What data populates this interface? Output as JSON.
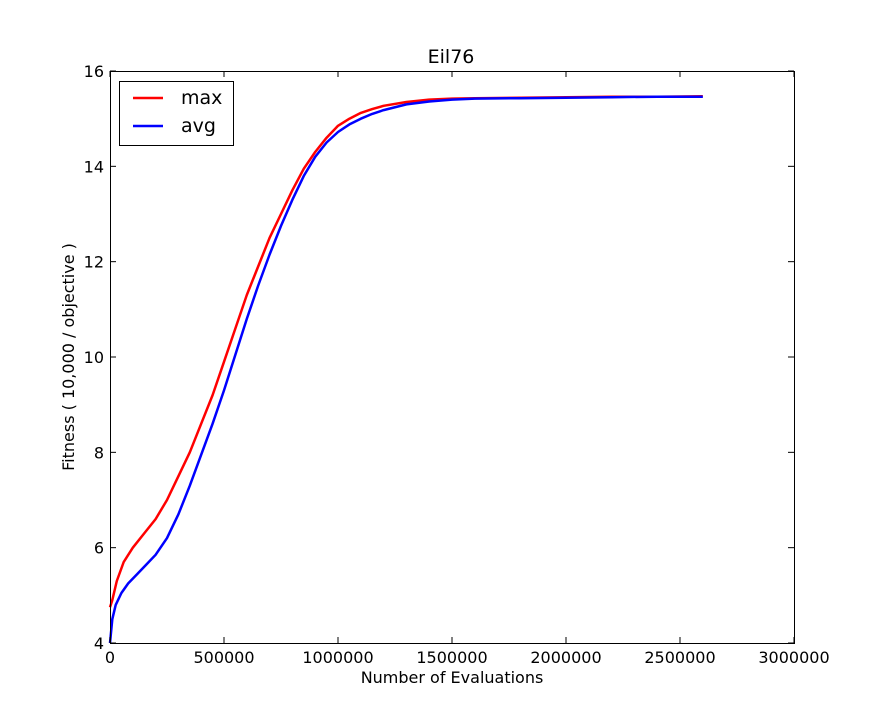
{
  "chart_data": {
    "type": "line",
    "title": "Eil76",
    "xlabel": "Number of Evaluations",
    "ylabel": "Fitness ( 10,000 / objective )",
    "xlim": [
      0,
      3000000
    ],
    "ylim": [
      4,
      16
    ],
    "xticks": [
      0,
      500000,
      1000000,
      1500000,
      2000000,
      2500000,
      3000000
    ],
    "xtick_labels": [
      "0",
      "500000",
      "1000000",
      "1500000",
      "2000000",
      "2500000",
      "3000000"
    ],
    "yticks": [
      4,
      6,
      8,
      10,
      12,
      14,
      16
    ],
    "ytick_labels": [
      "4",
      "6",
      "8",
      "10",
      "12",
      "14",
      "16"
    ],
    "grid": false,
    "legend_position": "upper-left",
    "series": [
      {
        "name": "max",
        "color": "#ff0000",
        "x": [
          0,
          10000,
          30000,
          60000,
          100000,
          150000,
          200000,
          250000,
          300000,
          350000,
          400000,
          450000,
          500000,
          550000,
          600000,
          650000,
          700000,
          750000,
          800000,
          850000,
          900000,
          950000,
          1000000,
          1050000,
          1100000,
          1150000,
          1200000,
          1300000,
          1400000,
          1500000,
          1600000,
          1800000,
          2000000,
          2200000,
          2400000,
          2600000
        ],
        "values": [
          4.75,
          4.9,
          5.3,
          5.7,
          6.0,
          6.3,
          6.6,
          7.0,
          7.5,
          8.0,
          8.6,
          9.2,
          9.9,
          10.6,
          11.3,
          11.9,
          12.5,
          13.0,
          13.5,
          13.95,
          14.3,
          14.6,
          14.85,
          15.0,
          15.12,
          15.2,
          15.27,
          15.35,
          15.4,
          15.42,
          15.43,
          15.44,
          15.45,
          15.46,
          15.46,
          15.47
        ]
      },
      {
        "name": "avg",
        "color": "#0000ff",
        "x": [
          0,
          10000,
          25000,
          50000,
          80000,
          120000,
          160000,
          200000,
          250000,
          300000,
          350000,
          400000,
          450000,
          500000,
          550000,
          600000,
          650000,
          700000,
          750000,
          800000,
          850000,
          900000,
          950000,
          1000000,
          1050000,
          1100000,
          1150000,
          1200000,
          1300000,
          1400000,
          1500000,
          1600000,
          1800000,
          2000000,
          2200000,
          2400000,
          2600000
        ],
        "values": [
          4.0,
          4.5,
          4.8,
          5.05,
          5.25,
          5.45,
          5.65,
          5.85,
          6.2,
          6.7,
          7.3,
          7.95,
          8.6,
          9.3,
          10.05,
          10.8,
          11.5,
          12.15,
          12.75,
          13.3,
          13.8,
          14.2,
          14.5,
          14.72,
          14.88,
          15.0,
          15.1,
          15.18,
          15.3,
          15.36,
          15.4,
          15.42,
          15.43,
          15.44,
          15.45,
          15.46,
          15.46
        ]
      }
    ]
  }
}
